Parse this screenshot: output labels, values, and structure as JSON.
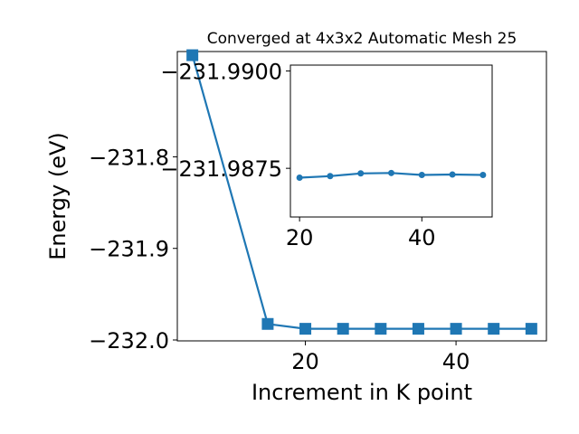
{
  "chart_data": [
    {
      "type": "line",
      "title": "Converged at 4x3x2 Automatic Mesh 25",
      "xlabel": "Increment in K point",
      "ylabel": "Energy (eV)",
      "xlim": [
        3,
        52
      ],
      "ylim": [
        -232.001,
        -231.685
      ],
      "xticks": [
        20,
        40
      ],
      "yticks": [
        -231.8,
        -231.9,
        -232.0
      ],
      "xtick_labels": [
        "20",
        "40"
      ],
      "ytick_labels": [
        "−231.8",
        "−231.9",
        "−232.0"
      ],
      "grid": false,
      "marker": "square",
      "color": "#1f77b4",
      "series": [
        {
          "x": [
            5,
            15,
            20,
            25,
            30,
            35,
            40,
            45,
            50
          ],
          "y": [
            -231.689,
            -231.9825,
            -231.9878,
            -231.9878,
            -231.9878,
            -231.9878,
            -231.9878,
            -231.9878,
            -231.9878
          ]
        }
      ]
    },
    {
      "type": "line",
      "title": "",
      "xlabel": "",
      "ylabel": "",
      "xlim": [
        18.5,
        51.5
      ],
      "ylim": [
        -231.98625,
        -231.99015
      ],
      "xticks": [
        20,
        40
      ],
      "yticks": [
        -231.99,
        -231.9875
      ],
      "xtick_labels": [
        "20",
        "40"
      ],
      "ytick_labels": [
        "−231.9900",
        "−231.9875"
      ],
      "grid": false,
      "marker": "circle",
      "color": "#1f77b4",
      "series": [
        {
          "x": [
            20,
            25,
            30,
            35,
            40,
            45,
            50
          ],
          "y": [
            -231.98726,
            -231.9873,
            -231.98737,
            -231.98738,
            -231.98733,
            -231.98734,
            -231.98733
          ]
        }
      ]
    }
  ]
}
